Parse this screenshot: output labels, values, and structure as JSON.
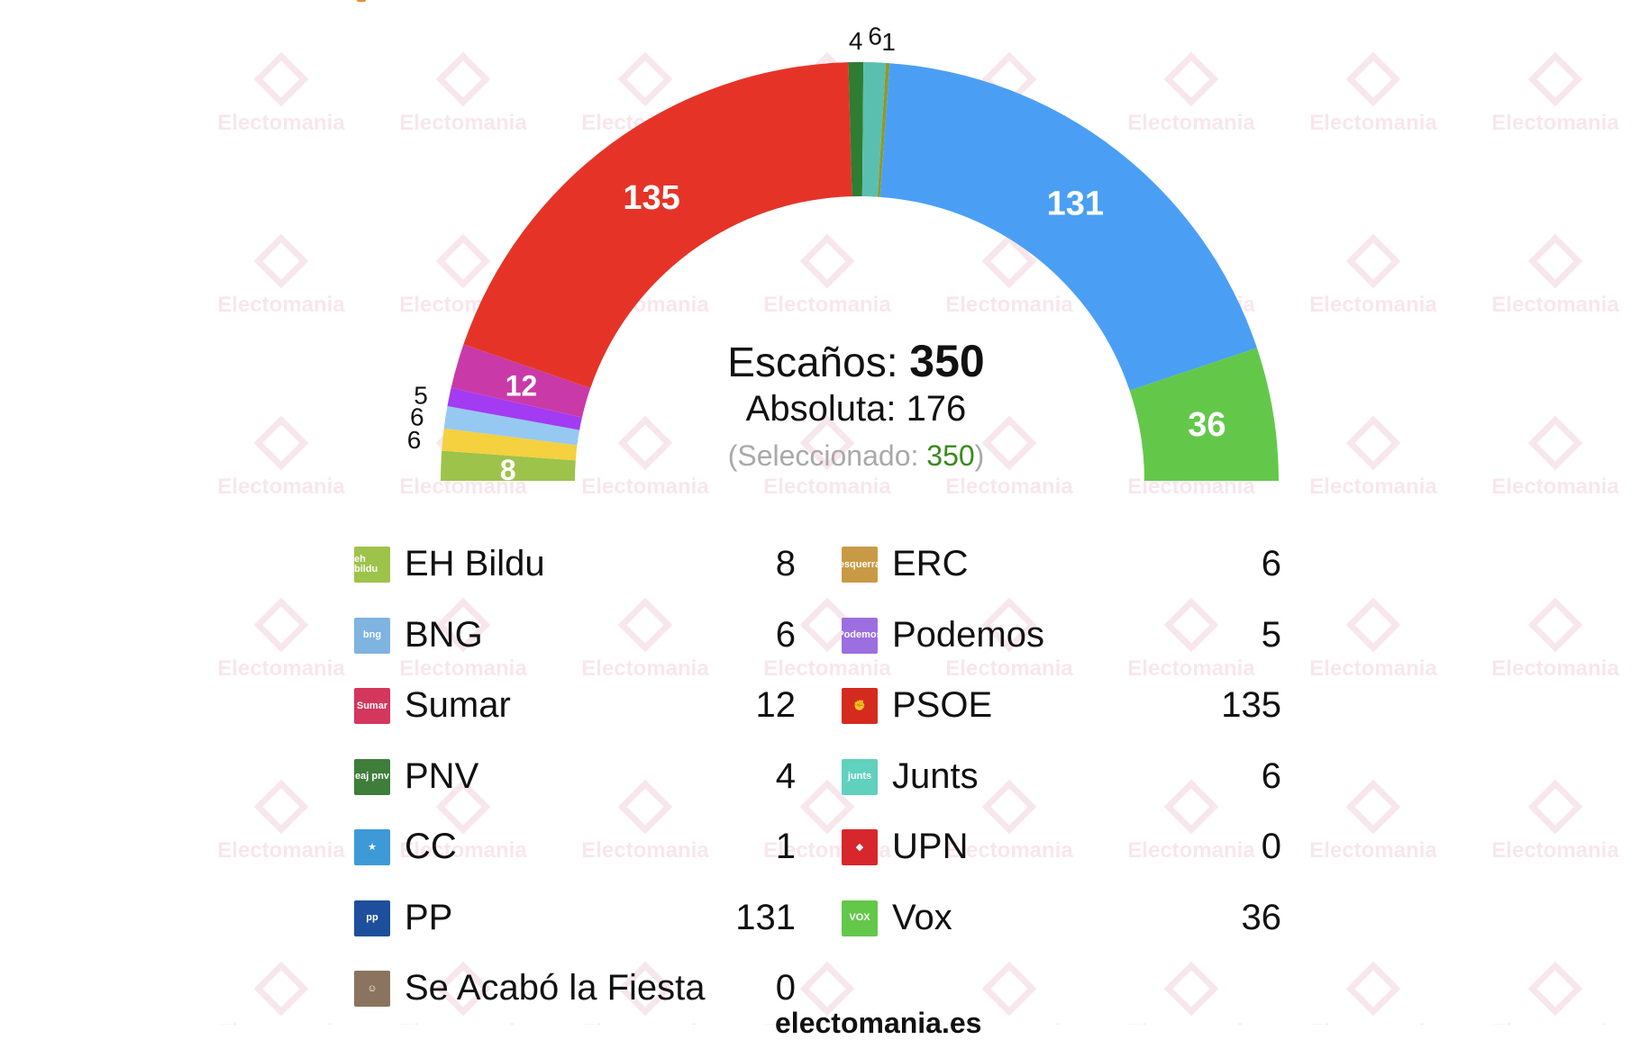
{
  "chart_data": {
    "type": "hemicycle",
    "total_seats": 350,
    "majority": 176,
    "selected": 350,
    "seat_order": [
      {
        "party": "EH Bildu",
        "seats": 8,
        "color": "#9dc34b",
        "arc_label": "8",
        "label_inside": true
      },
      {
        "party": "ERC",
        "seats": 6,
        "color": "#f5d03f",
        "arc_label": "6",
        "label_inside": false
      },
      {
        "party": "BNG",
        "seats": 6,
        "color": "#95c9f1",
        "arc_label": "6",
        "label_inside": false
      },
      {
        "party": "Podemos",
        "seats": 5,
        "color": "#a33bf2",
        "arc_label": "5",
        "label_inside": false
      },
      {
        "party": "Sumar",
        "seats": 12,
        "color": "#c93aa8",
        "arc_label": "12",
        "label_inside": true
      },
      {
        "party": "PSOE",
        "seats": 135,
        "color": "#e53427",
        "arc_label": "135",
        "label_inside": true
      },
      {
        "party": "PNV",
        "seats": 4,
        "color": "#2e7d32",
        "arc_label": "4",
        "label_inside": false
      },
      {
        "party": "Junts",
        "seats": 6,
        "color": "#5bbfb0",
        "arc_label": "6",
        "label_inside": false
      },
      {
        "party": "CC",
        "seats": 1,
        "color": "#8d9a2e",
        "arc_label": "1",
        "label_inside": false
      },
      {
        "party": "PP",
        "seats": 131,
        "color": "#4a9ff5",
        "arc_label": "131",
        "label_inside": true
      },
      {
        "party": "Vox",
        "seats": 36,
        "color": "#63c84a",
        "arc_label": "36",
        "label_inside": true
      }
    ]
  },
  "center": {
    "seats_label": "Escaños:",
    "seats_value": "350",
    "absolute_label": "Absoluta: 176",
    "selected_open": "(Seleccionado:",
    "selected_value": "350",
    "selected_close": ")"
  },
  "legend": {
    "left": [
      {
        "name": "EH Bildu",
        "seats": "8",
        "icon_color": "#9dc34b",
        "icon_text": "eh bildu",
        "icon": "eh-bildu-logo-icon"
      },
      {
        "name": "BNG",
        "seats": "6",
        "icon_color": "#7fb3e0",
        "icon_text": "bng",
        "icon": "bng-logo-icon"
      },
      {
        "name": "Sumar",
        "seats": "12",
        "icon_color": "#d4365c",
        "icon_text": "Sumar",
        "icon": "sumar-logo-icon"
      },
      {
        "name": "PNV",
        "seats": "4",
        "icon_color": "#3e7d3a",
        "icon_text": "eaj pnv",
        "icon": "pnv-logo-icon"
      },
      {
        "name": "CC",
        "seats": "1",
        "icon_color": "#3d9ad6",
        "icon_text": "★",
        "icon": "cc-star-logo-icon"
      },
      {
        "name": "PP",
        "seats": "131",
        "icon_color": "#1d4f9c",
        "icon_text": "pp",
        "icon": "pp-logo-icon"
      },
      {
        "name": "Se Acabó la Fiesta",
        "seats": "0",
        "icon_color": "#8a7460",
        "icon_text": "☺",
        "icon": "salf-logo-icon"
      }
    ],
    "right": [
      {
        "name": "ERC",
        "seats": "6",
        "icon_color": "#c99a45",
        "icon_text": "esquerra",
        "icon": "erc-logo-icon"
      },
      {
        "name": "Podemos",
        "seats": "5",
        "icon_color": "#9b6fe0",
        "icon_text": "Podemos",
        "icon": "podemos-logo-icon"
      },
      {
        "name": "PSOE",
        "seats": "135",
        "icon_color": "#d52b1e",
        "icon_text": "✊",
        "icon": "psoe-logo-icon"
      },
      {
        "name": "Junts",
        "seats": "6",
        "icon_color": "#5fd1bd",
        "icon_text": "junts",
        "icon": "junts-logo-icon"
      },
      {
        "name": "UPN",
        "seats": "0",
        "icon_color": "#d7262c",
        "icon_text": "◆",
        "icon": "upn-logo-icon"
      },
      {
        "name": "Vox",
        "seats": "36",
        "icon_color": "#63c84a",
        "icon_text": "VOX",
        "icon": "vox-logo-icon"
      }
    ]
  },
  "watermark": {
    "text": "Electomania"
  },
  "footer": {
    "url": "electomania.es"
  }
}
